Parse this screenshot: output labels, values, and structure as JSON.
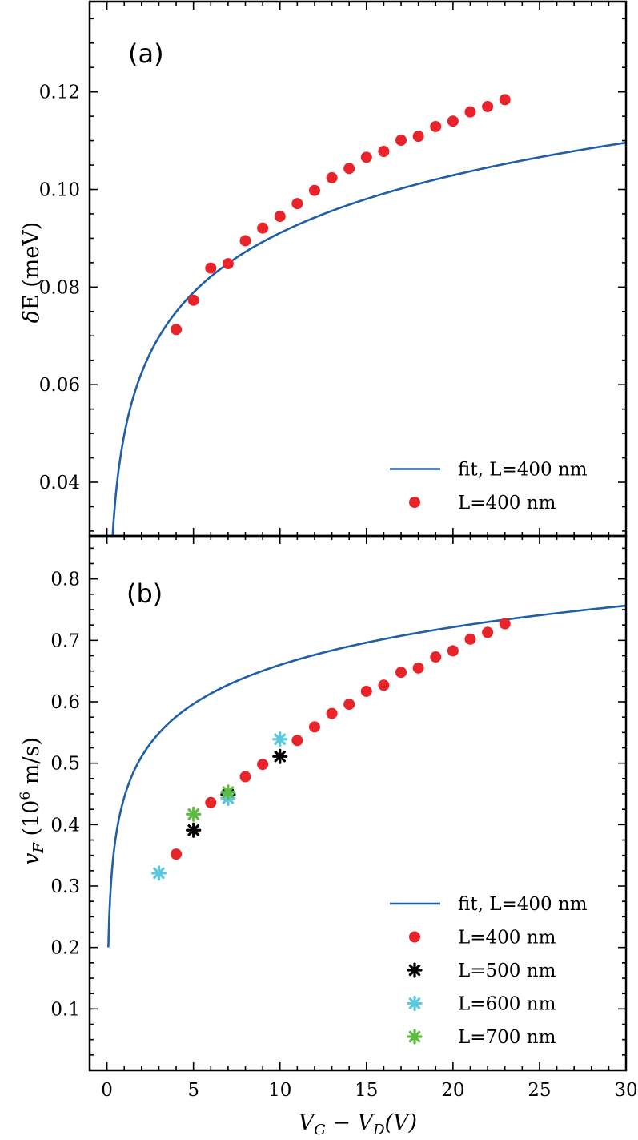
{
  "colors": {
    "fit": "#1f5fa8",
    "L400": "#e8232a",
    "L500": "#000000",
    "L600": "#5bc8dc",
    "L700": "#5dbb3f",
    "frame": "#000000"
  },
  "x_axis": {
    "label": "V_G − V_D(V)",
    "label_parts": {
      "v1": "V",
      "s1": "G",
      "minus": " − ",
      "v2": "V",
      "s2": "D",
      "paren": "(V)"
    },
    "range": [
      -1,
      30
    ],
    "ticks": [
      0,
      5,
      10,
      15,
      20,
      25,
      30
    ],
    "tick_labels": [
      "0",
      "5",
      "10",
      "15",
      "20",
      "25",
      "30"
    ]
  },
  "chart_data": [
    {
      "type": "scatter",
      "panel": "(a)",
      "title": "",
      "xlabel": "V_G − V_D(V)",
      "ylabel": "δE (meV)",
      "ylim": [
        0.029,
        0.1385
      ],
      "xlim": [
        -1,
        30
      ],
      "yticks": [
        0.04,
        0.06,
        0.08,
        0.1,
        0.12
      ],
      "ytick_labels": [
        "0.04",
        "0.06",
        "0.08",
        "0.10",
        "0.12"
      ],
      "fit": {
        "name": "fit, L=400 nm",
        "model": "a*sqrt(x)+b*ln(x)+c",
        "a": -0.0009633,
        "b": 0.018864,
        "c": 0.0507
      },
      "series": [
        {
          "name": "L=400 nm",
          "marker": "circle",
          "x": [
            4,
            5,
            6,
            7,
            8,
            9,
            10,
            11,
            12,
            13,
            14,
            15,
            16,
            17,
            18,
            19,
            20,
            21,
            22,
            23
          ],
          "y": [
            0.0713,
            0.0773,
            0.0839,
            0.0848,
            0.0895,
            0.0921,
            0.0945,
            0.0971,
            0.0998,
            0.1024,
            0.1043,
            0.1066,
            0.1078,
            0.1101,
            0.1109,
            0.1129,
            0.114,
            0.1159,
            0.117,
            0.1184
          ]
        }
      ],
      "legend": {
        "placement": "bottom-right",
        "entries": [
          "fit, L=400 nm",
          "L=400 nm"
        ]
      }
    },
    {
      "type": "scatter",
      "panel": "(b)",
      "title": "",
      "xlabel": "V_G − V_D(V)",
      "ylabel": "v_F (10^6 m/s)",
      "ylim": [
        0.0,
        0.87
      ],
      "xlim": [
        -1,
        30
      ],
      "yticks": [
        0.1,
        0.2,
        0.3,
        0.4,
        0.5,
        0.6,
        0.7,
        0.8
      ],
      "ytick_labels": [
        "0.1",
        "0.2",
        "0.3",
        "0.4",
        "0.5",
        "0.6",
        "0.7",
        "0.8"
      ],
      "fit": {
        "name": "fit, L=400 nm",
        "model": "a*sqrt(x)+b*ln(x)+c",
        "a": -0.0048795,
        "b": 0.09811,
        "c": 0.4495
      },
      "series": [
        {
          "name": "L=400 nm",
          "marker": "circle",
          "x": [
            4,
            6,
            8,
            9,
            11,
            12,
            13,
            14,
            15,
            16,
            17,
            18,
            19,
            20,
            21,
            22,
            23
          ],
          "y": [
            0.352,
            0.436,
            0.478,
            0.498,
            0.537,
            0.559,
            0.581,
            0.596,
            0.617,
            0.627,
            0.648,
            0.655,
            0.673,
            0.683,
            0.702,
            0.713,
            0.727
          ]
        },
        {
          "name": "L=500 nm",
          "marker": "asterisk",
          "x": [
            5,
            7,
            10
          ],
          "y": [
            0.391,
            0.449,
            0.511
          ]
        },
        {
          "name": "L=600 nm",
          "marker": "asterisk",
          "x": [
            3,
            7,
            10
          ],
          "y": [
            0.321,
            0.443,
            0.539
          ]
        },
        {
          "name": "L=700 nm",
          "marker": "asterisk",
          "x": [
            5,
            7
          ],
          "y": [
            0.417,
            0.453
          ]
        }
      ],
      "legend": {
        "placement": "bottom-right",
        "entries": [
          "fit, L=400 nm",
          "L=400 nm",
          "L=500 nm",
          "L=600 nm",
          "L=700 nm"
        ]
      }
    }
  ],
  "panels": [
    {
      "tag": "(a)",
      "ylabel_parts": {
        "delta": "δ",
        "rest": "E (meV)"
      }
    },
    {
      "tag": "(b)",
      "ylabel_parts": {
        "v": "v",
        "sub": "F",
        "open": " (10",
        "sup": "6",
        "close": " m/s)"
      }
    }
  ]
}
